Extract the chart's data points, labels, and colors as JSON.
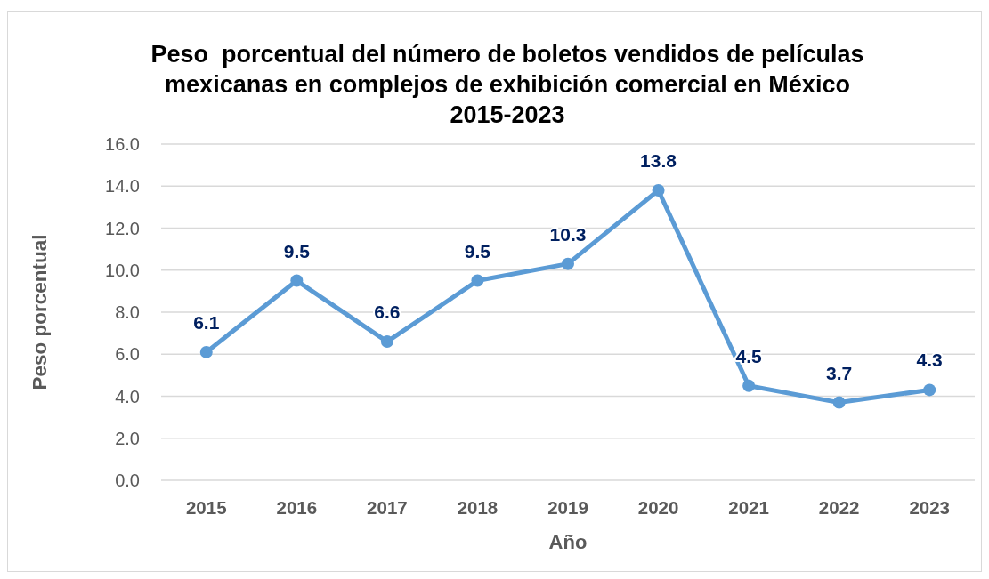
{
  "chart_data": {
    "type": "line",
    "title": "Peso  porcentual del número de boletos vendidos de películas\nmexicanas en complejos de exhibición comercial en México\n2015-2023",
    "xlabel": "Año",
    "ylabel": "Peso porcentual",
    "categories": [
      "2015",
      "2016",
      "2017",
      "2018",
      "2019",
      "2020",
      "2021",
      "2022",
      "2023"
    ],
    "series": [
      {
        "color": "#5b9bd5",
        "values": [
          6.1,
          9.5,
          6.6,
          9.5,
          10.3,
          13.8,
          4.5,
          3.7,
          4.3
        ]
      }
    ],
    "ylim": [
      0,
      16
    ],
    "yticks": [
      {
        "value": 0,
        "label": "0.0"
      },
      {
        "value": 2,
        "label": "2.0"
      },
      {
        "value": 4,
        "label": "4.0"
      },
      {
        "value": 6,
        "label": "6.0"
      },
      {
        "value": 8,
        "label": "8.0"
      },
      {
        "value": 10,
        "label": "10.0"
      },
      {
        "value": 12,
        "label": "12.0"
      },
      {
        "value": 14,
        "label": "14.0"
      },
      {
        "value": 16,
        "label": "16.0"
      }
    ],
    "grid": "y",
    "marker": "circle",
    "line_style": "solid",
    "data_labels": true
  }
}
